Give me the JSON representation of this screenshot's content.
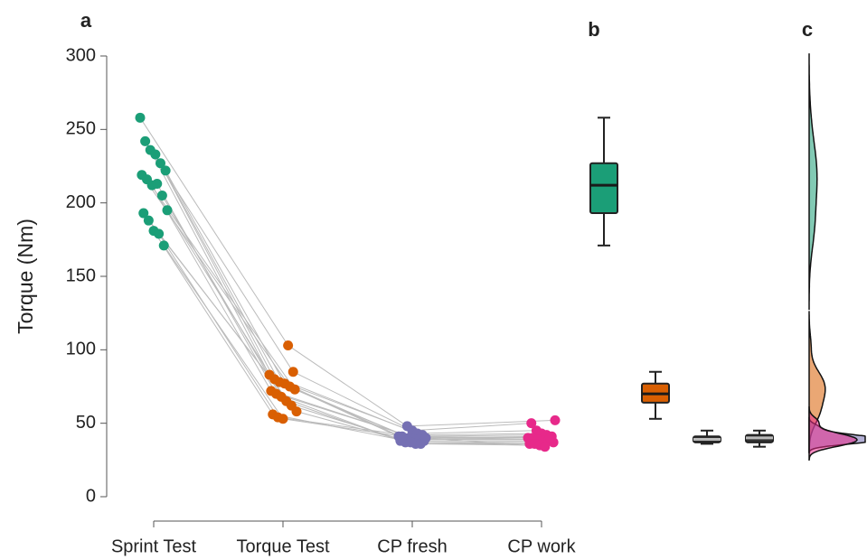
{
  "chart_data": {
    "type": "paired-scatter",
    "panel_labels": [
      "a",
      "b",
      "c"
    ],
    "y_label": "Torque (Nm)",
    "categories": [
      "Sprint Test",
      "Torque Test",
      "CP fresh",
      "CP work"
    ],
    "series": [
      {
        "color": "#1b9e77",
        "values": [
          258,
          242,
          236,
          233,
          227,
          222,
          219,
          216,
          212,
          213,
          205,
          195,
          193,
          188,
          181,
          179,
          171
        ]
      },
      {
        "color": "#d95f02",
        "values": [
          103,
          85,
          83,
          80,
          78,
          77,
          75,
          73,
          72,
          70,
          68,
          65,
          62,
          58,
          56,
          54,
          53
        ]
      },
      {
        "color": "#7570b3",
        "values": [
          48,
          45,
          43,
          42,
          41,
          40,
          40,
          39,
          39,
          38,
          38,
          37,
          37,
          36,
          36,
          40,
          41
        ]
      },
      {
        "color": "#e7298a",
        "values": [
          52,
          50,
          45,
          43,
          42,
          41,
          40,
          40,
          39,
          38,
          38,
          37,
          36,
          36,
          35,
          34,
          40
        ]
      }
    ],
    "boxes": [
      {
        "min": 171,
        "q1": 193,
        "median": 212,
        "q3": 227,
        "max": 258,
        "color": "#1b9e77",
        "median_color": "#1a1a1a"
      },
      {
        "min": 53,
        "q1": 64,
        "median": 70,
        "q3": 77,
        "max": 85,
        "color": "#d95f02",
        "median_color": "#1a1a1a"
      },
      {
        "min": 36,
        "q1": 37,
        "median": 39,
        "q3": 41,
        "max": 45,
        "color": "#333333",
        "median_color": "#bbbbbb"
      },
      {
        "min": 34,
        "q1": 37,
        "median": 40,
        "q3": 42,
        "max": 45,
        "color": "#333333",
        "median_color": "#bbbbbb"
      }
    ],
    "ylim": [
      0,
      300
    ],
    "yticks": [
      0,
      50,
      100,
      150,
      200,
      250,
      300
    ]
  }
}
